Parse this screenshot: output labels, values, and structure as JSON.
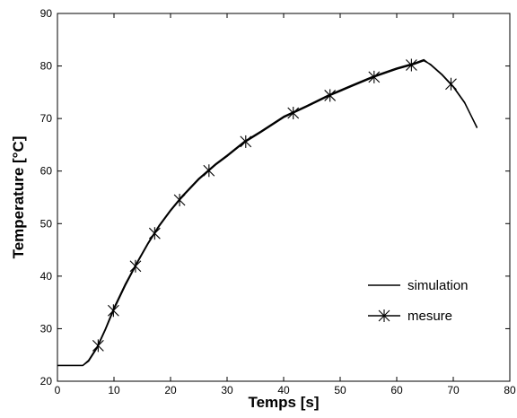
{
  "chart_data": {
    "type": "line",
    "title": "",
    "xlabel": "Temps  [s]",
    "ylabel": "Temperature [°C]",
    "xlim": [
      0,
      80
    ],
    "ylim": [
      20,
      90
    ],
    "xticks": [
      0,
      10,
      20,
      30,
      40,
      50,
      60,
      70,
      80
    ],
    "yticks": [
      20,
      30,
      40,
      50,
      60,
      70,
      80,
      90
    ],
    "grid": false,
    "legend_position": "lower-right",
    "series": [
      {
        "name": "simulation",
        "style": "solid line",
        "x": [
          0,
          4.5,
          5.5,
          7,
          8.5,
          10,
          12,
          14,
          16,
          18,
          20,
          22,
          25,
          28,
          30,
          33,
          36,
          40,
          44,
          48,
          52,
          56,
          60,
          63,
          64.8,
          66,
          68,
          70,
          72,
          74.2
        ],
        "y": [
          23,
          23,
          24,
          26.5,
          30,
          34,
          38.5,
          42.5,
          46.3,
          49.7,
          52.6,
          55.2,
          58.6,
          61.4,
          63,
          65.6,
          67.6,
          70.4,
          72.4,
          74.5,
          76.3,
          78.1,
          79.6,
          80.5,
          81.2,
          80.2,
          78.3,
          76,
          73,
          68.3
        ]
      },
      {
        "name": "mesure",
        "style": "line with star markers",
        "x": [
          0,
          4.5,
          5.5,
          7,
          8.5,
          10,
          12,
          14,
          16,
          18,
          20,
          22,
          25,
          28,
          30,
          33,
          36,
          40,
          44,
          48,
          52,
          56,
          60,
          63,
          64.8,
          66,
          68,
          70,
          72,
          74.2
        ],
        "y": [
          23,
          23,
          23.8,
          26.3,
          29.8,
          33.7,
          38.2,
          42.3,
          46.1,
          49.5,
          52.4,
          55,
          58.4,
          61.2,
          62.8,
          65.4,
          67.4,
          70.2,
          72.2,
          74.3,
          76.1,
          77.9,
          79.4,
          80.3,
          81,
          80.3,
          78.4,
          76.1,
          73.1,
          68.2
        ],
        "marker_x": [
          7.2,
          9.9,
          13.8,
          17.2,
          21.6,
          26.8,
          33.3,
          41.7,
          48.2,
          56,
          62.6,
          69.6
        ]
      }
    ]
  }
}
